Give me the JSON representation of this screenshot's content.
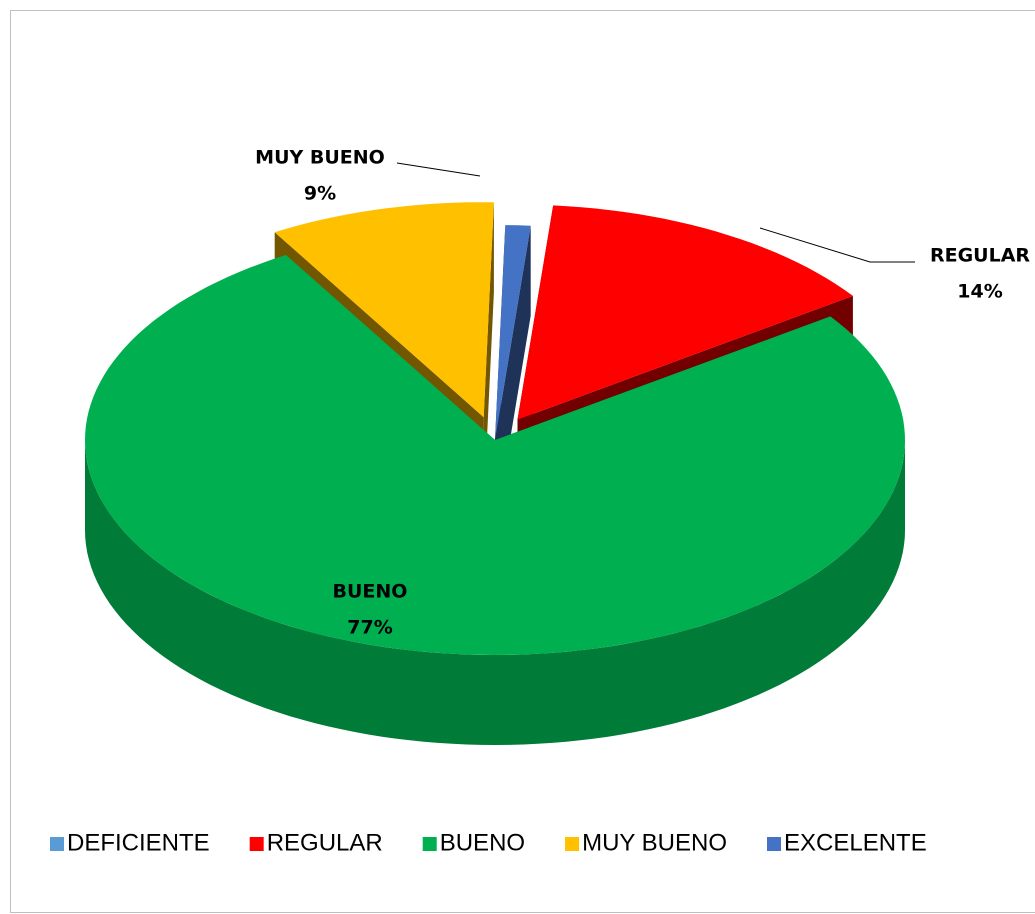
{
  "chart_data": {
    "type": "pie",
    "categories": [
      "DEFICIENTE",
      "REGULAR",
      "BUENO",
      "MUY BUENO",
      "EXCELENTE"
    ],
    "values": [
      0,
      14,
      77,
      9,
      1
    ],
    "value_labels": [
      null,
      "14%",
      "77%",
      "9%",
      null
    ],
    "colors": [
      "#5b9bd5",
      "#ff0000",
      "#00b050",
      "#ffc000",
      "#4472c4"
    ],
    "legend": "bottom"
  }
}
